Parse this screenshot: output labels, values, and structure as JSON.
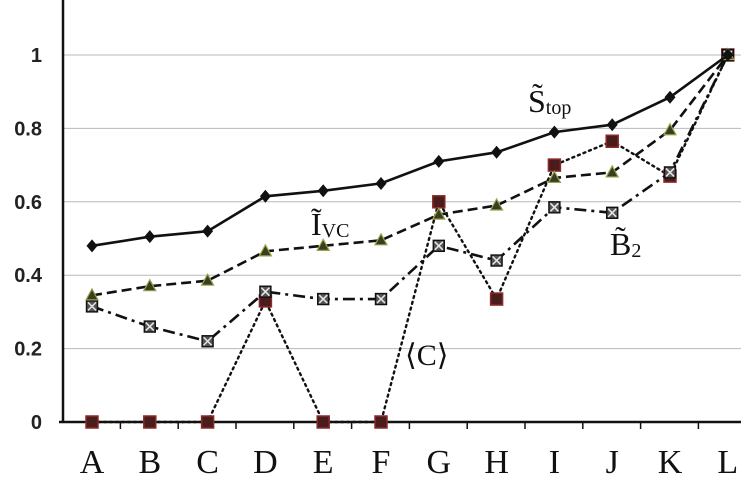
{
  "chart_data": {
    "type": "line",
    "categories": [
      "A",
      "B",
      "C",
      "D",
      "E",
      "F",
      "G",
      "H",
      "I",
      "J",
      "K",
      "L"
    ],
    "ylim": [
      0,
      1
    ],
    "yticks": [
      "0",
      "0.2",
      "0.4",
      "0.6",
      "0.8",
      "1"
    ],
    "grid": true,
    "series": [
      {
        "name": "S̃top",
        "label_main": "S̃",
        "label_sub": "top",
        "style": "solid",
        "marker": "diamond",
        "values": [
          0.48,
          0.505,
          0.52,
          0.615,
          0.63,
          0.65,
          0.71,
          0.735,
          0.79,
          0.81,
          0.885,
          1.0
        ]
      },
      {
        "name": "ĨVC",
        "label_main": "Ĩ",
        "label_sub": "VC",
        "style": "dashed",
        "marker": "triangle",
        "values": [
          0.345,
          0.37,
          0.385,
          0.465,
          0.48,
          0.495,
          0.565,
          0.59,
          0.665,
          0.68,
          0.795,
          1.0
        ]
      },
      {
        "name": "B̃2",
        "label_main": "B̃",
        "label_sub": "2",
        "style": "dashdot",
        "marker": "xsquare",
        "values": [
          0.315,
          0.26,
          0.22,
          0.355,
          0.335,
          0.335,
          0.48,
          0.44,
          0.585,
          0.57,
          0.68,
          1.0
        ]
      },
      {
        "name": "⟨C⟩",
        "label_main": "⟨C⟩",
        "label_sub": "",
        "style": "dotted",
        "marker": "square",
        "values": [
          0.0,
          0.0,
          0.0,
          0.33,
          0.0,
          0.0,
          0.6,
          0.335,
          0.7,
          0.765,
          0.67,
          1.0
        ]
      }
    ]
  }
}
